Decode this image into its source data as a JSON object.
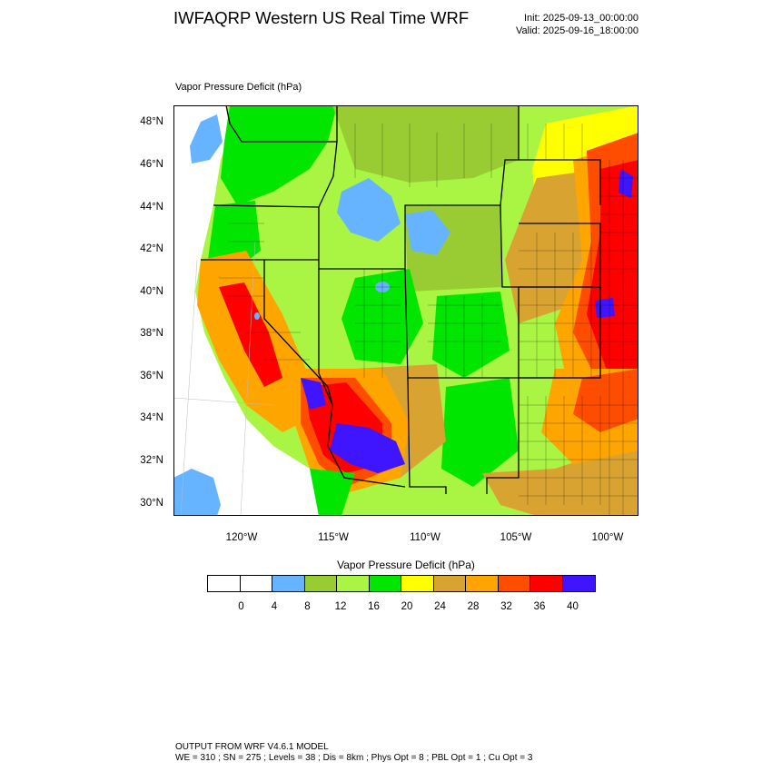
{
  "header": {
    "title": "IWFAQRP Western US Real Time WRF",
    "init": "Init: 2025-09-13_00:00:00",
    "valid": "Valid: 2025-09-16_18:00:00"
  },
  "map": {
    "field_label": "Vapor Pressure Deficit   (hPa)",
    "lat_ticks": [
      "48°N",
      "46°N",
      "44°N",
      "42°N",
      "40°N",
      "38°N",
      "36°N",
      "34°N",
      "32°N",
      "30°N"
    ],
    "lon_ticks": [
      "120°W",
      "115°W",
      "110°W",
      "105°W",
      "100°W"
    ],
    "colors": {
      "ocean": "#ffffff",
      "water": "#66b3ff",
      "land_low": "#99cc33",
      "land_mid": "#aaf544",
      "green": "#00e600",
      "yellow": "#ffff00",
      "tan": "#d9a332",
      "orange": "#ffa500",
      "redorange": "#ff4d00",
      "red": "#ff0000",
      "violet": "#3f14ff"
    }
  },
  "legend": {
    "title": "Vapor Pressure Deficit  (hPa)",
    "labels": [
      "0",
      "4",
      "8",
      "12",
      "16",
      "20",
      "24",
      "28",
      "32",
      "36",
      "40"
    ],
    "colors": [
      "#ffffff",
      "#ffffff",
      "#66b3ff",
      "#99cc33",
      "#aaf544",
      "#00e600",
      "#ffff00",
      "#d9a332",
      "#ffa500",
      "#ff4d00",
      "#ff0000",
      "#3f14ff"
    ]
  },
  "footer": {
    "line1": "OUTPUT FROM WRF V4.6.1 MODEL",
    "line2": "WE = 310 ; SN = 275 ; Levels = 38 ; Dis = 8km ; Phys Opt = 8 ; PBL Opt = 1 ; Cu Opt = 3"
  }
}
